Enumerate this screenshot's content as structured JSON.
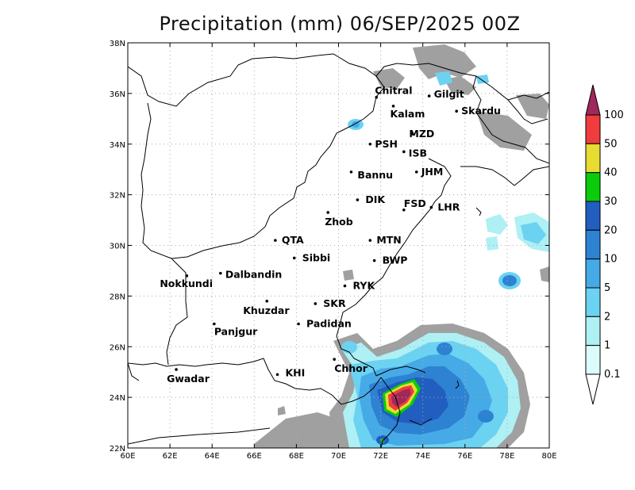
{
  "title": "Precipitation (mm) 06/SEP/2025 00Z",
  "x_ticks": [
    "60E",
    "62E",
    "64E",
    "66E",
    "68E",
    "70E",
    "72E",
    "74E",
    "76E",
    "78E",
    "80E"
  ],
  "y_ticks": [
    "22N",
    "24N",
    "26N",
    "28N",
    "30N",
    "32N",
    "34N",
    "36N",
    "38N"
  ],
  "x_tick_values": [
    60,
    62,
    64,
    66,
    68,
    70,
    72,
    74,
    76,
    78,
    80
  ],
  "y_tick_values": [
    22,
    24,
    26,
    28,
    30,
    32,
    34,
    36,
    38
  ],
  "colorbar": {
    "labels": [
      "0.1",
      "1",
      "2",
      "5",
      "10",
      "20",
      "30",
      "40",
      "50",
      "100"
    ],
    "colors": [
      "#a0a0a0",
      "#dcfcfc",
      "#aef0f4",
      "#6cd2f2",
      "#46aae6",
      "#2e82d2",
      "#215ec0",
      "#0acc0a",
      "#e6dc32",
      "#f03c3c",
      "#a0285a"
    ]
  },
  "cities": [
    {
      "name": "Chitral",
      "lon": 71.8,
      "lat": 35.85
    },
    {
      "name": "Kalam",
      "lon": 72.6,
      "lat": 35.5
    },
    {
      "name": "Gilgit",
      "lon": 74.3,
      "lat": 35.9
    },
    {
      "name": "Skardu",
      "lon": 75.6,
      "lat": 35.3
    },
    {
      "name": "MZD",
      "lon": 73.5,
      "lat": 34.4
    },
    {
      "name": "PSH",
      "lon": 71.5,
      "lat": 34.0
    },
    {
      "name": "ISB",
      "lon": 73.1,
      "lat": 33.7
    },
    {
      "name": "JHM",
      "lon": 73.7,
      "lat": 32.9
    },
    {
      "name": "Bannu",
      "lon": 70.6,
      "lat": 32.9
    },
    {
      "name": "DIK",
      "lon": 70.9,
      "lat": 31.8
    },
    {
      "name": "FSD",
      "lon": 73.1,
      "lat": 31.4
    },
    {
      "name": "LHR",
      "lon": 74.4,
      "lat": 31.5
    },
    {
      "name": "Zhob",
      "lon": 69.5,
      "lat": 31.3
    },
    {
      "name": "QTA",
      "lon": 67.0,
      "lat": 30.2
    },
    {
      "name": "MTN",
      "lon": 71.5,
      "lat": 30.2
    },
    {
      "name": "Sibbi",
      "lon": 67.9,
      "lat": 29.5
    },
    {
      "name": "BWP",
      "lon": 71.7,
      "lat": 29.4
    },
    {
      "name": "Dalbandin",
      "lon": 64.4,
      "lat": 28.9
    },
    {
      "name": "Nokkundi",
      "lon": 62.8,
      "lat": 28.8
    },
    {
      "name": "RYK",
      "lon": 70.3,
      "lat": 28.4
    },
    {
      "name": "Khuzdar",
      "lon": 66.6,
      "lat": 27.8
    },
    {
      "name": "SKR",
      "lon": 68.9,
      "lat": 27.7
    },
    {
      "name": "Panjgur",
      "lon": 64.1,
      "lat": 26.9
    },
    {
      "name": "Padidan",
      "lon": 68.1,
      "lat": 26.9
    },
    {
      "name": "Chhor",
      "lon": 69.8,
      "lat": 25.5
    },
    {
      "name": "KHI",
      "lon": 67.1,
      "lat": 24.9
    },
    {
      "name": "Gwadar",
      "lon": 62.3,
      "lat": 25.1
    }
  ]
}
